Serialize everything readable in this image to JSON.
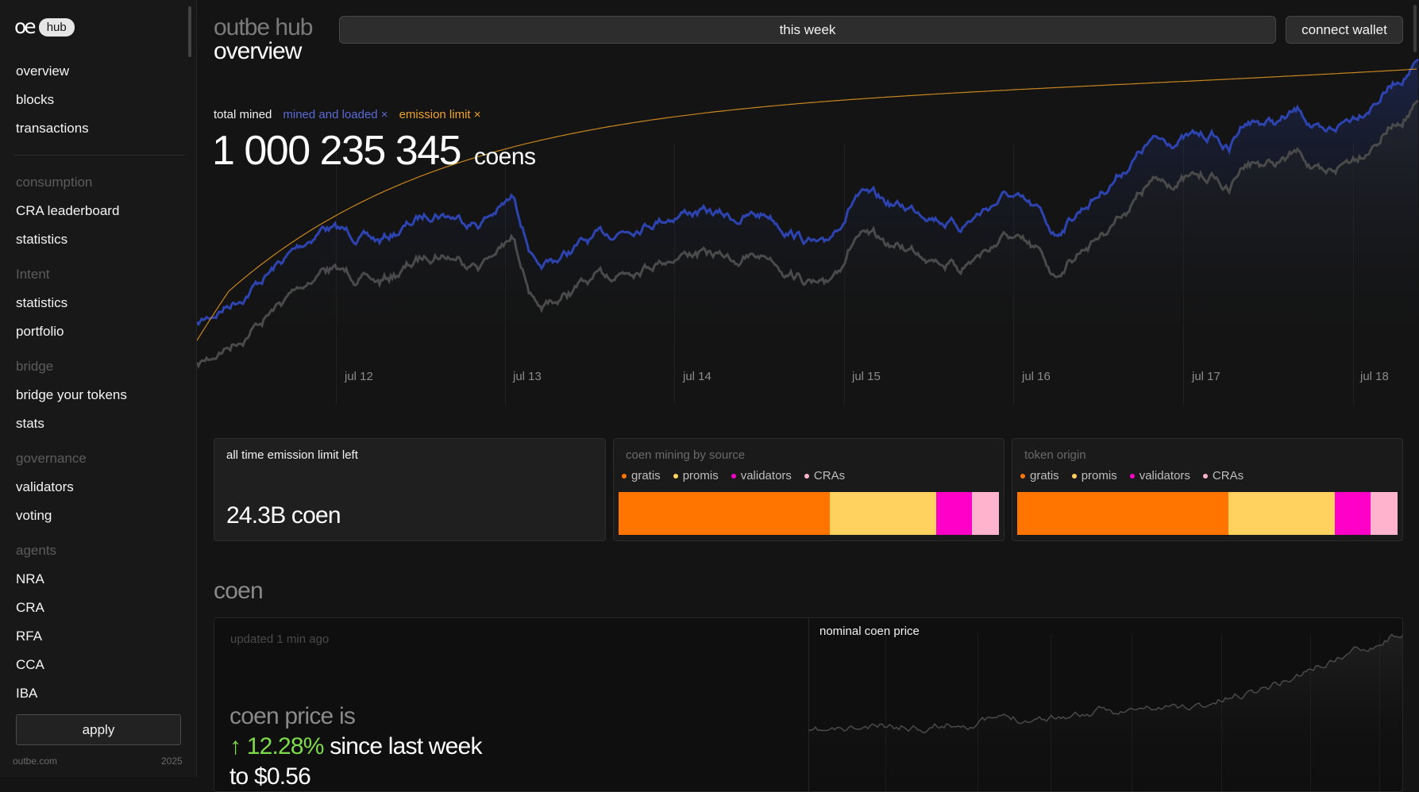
{
  "sidebar": {
    "logo_mark": "oe",
    "logo_badge": "hub",
    "items": [
      {
        "label": "overview"
      },
      {
        "label": "blocks"
      },
      {
        "label": "transactions"
      }
    ],
    "sections": [
      {
        "title": "consumption",
        "items": [
          {
            "label": "CRA leaderboard"
          },
          {
            "label": "statistics"
          }
        ]
      },
      {
        "title": "Intent",
        "items": [
          {
            "label": "statistics"
          },
          {
            "label": "portfolio"
          }
        ]
      },
      {
        "title": "bridge",
        "items": [
          {
            "label": "bridge your tokens"
          },
          {
            "label": "stats"
          }
        ]
      },
      {
        "title": "governance",
        "items": [
          {
            "label": "validators"
          },
          {
            "label": "voting"
          }
        ]
      },
      {
        "title": "agents",
        "items": [
          {
            "label": "NRA"
          },
          {
            "label": "CRA"
          },
          {
            "label": "RFA"
          },
          {
            "label": "CCA"
          },
          {
            "label": "IBA"
          }
        ]
      }
    ],
    "apply_label": "apply",
    "footer_site": "outbe.com",
    "footer_year": "2025"
  },
  "header": {
    "brand": "outbe hub",
    "title": "overview",
    "period_label": "this week",
    "wallet_label": "connect wallet"
  },
  "hero": {
    "legend": {
      "total": "total mined",
      "mined": "mined and loaded ×",
      "limit": "emission limit ×"
    },
    "total_value": "1 000 235 345",
    "total_unit": "coens",
    "x_labels": [
      "jul 12",
      "jul 13",
      "jul 14",
      "jul 15",
      "jul 16",
      "jul 17",
      "jul 18"
    ],
    "colors": {
      "mined": "#2d44b0",
      "total": "#4a4a4a",
      "limit": "#c8861f"
    }
  },
  "cards": {
    "emission": {
      "title": "all time emission limit left",
      "value": "24.3B coen"
    },
    "mining": {
      "title": "coen mining by source"
    },
    "origin": {
      "title": "token origin"
    },
    "legend": [
      {
        "label": "gratis",
        "color": "#ff7500"
      },
      {
        "label": "promis",
        "color": "#ffd25f"
      },
      {
        "label": "validators",
        "color": "#ff00c8"
      },
      {
        "label": "CRAs",
        "color": "#ffb3cc"
      }
    ],
    "mining_shares": [
      0.555,
      0.28,
      0.095,
      0.07
    ],
    "origin_shares": [
      0.555,
      0.28,
      0.095,
      0.07
    ]
  },
  "coen": {
    "section_title": "coen",
    "updated": "updated 1 min ago",
    "price_line1": "coen price is",
    "price_change": "↑ 12.28%",
    "price_since": " since last week",
    "price_line3": "to $0.56",
    "chart_title": "nominal coen price"
  }
}
